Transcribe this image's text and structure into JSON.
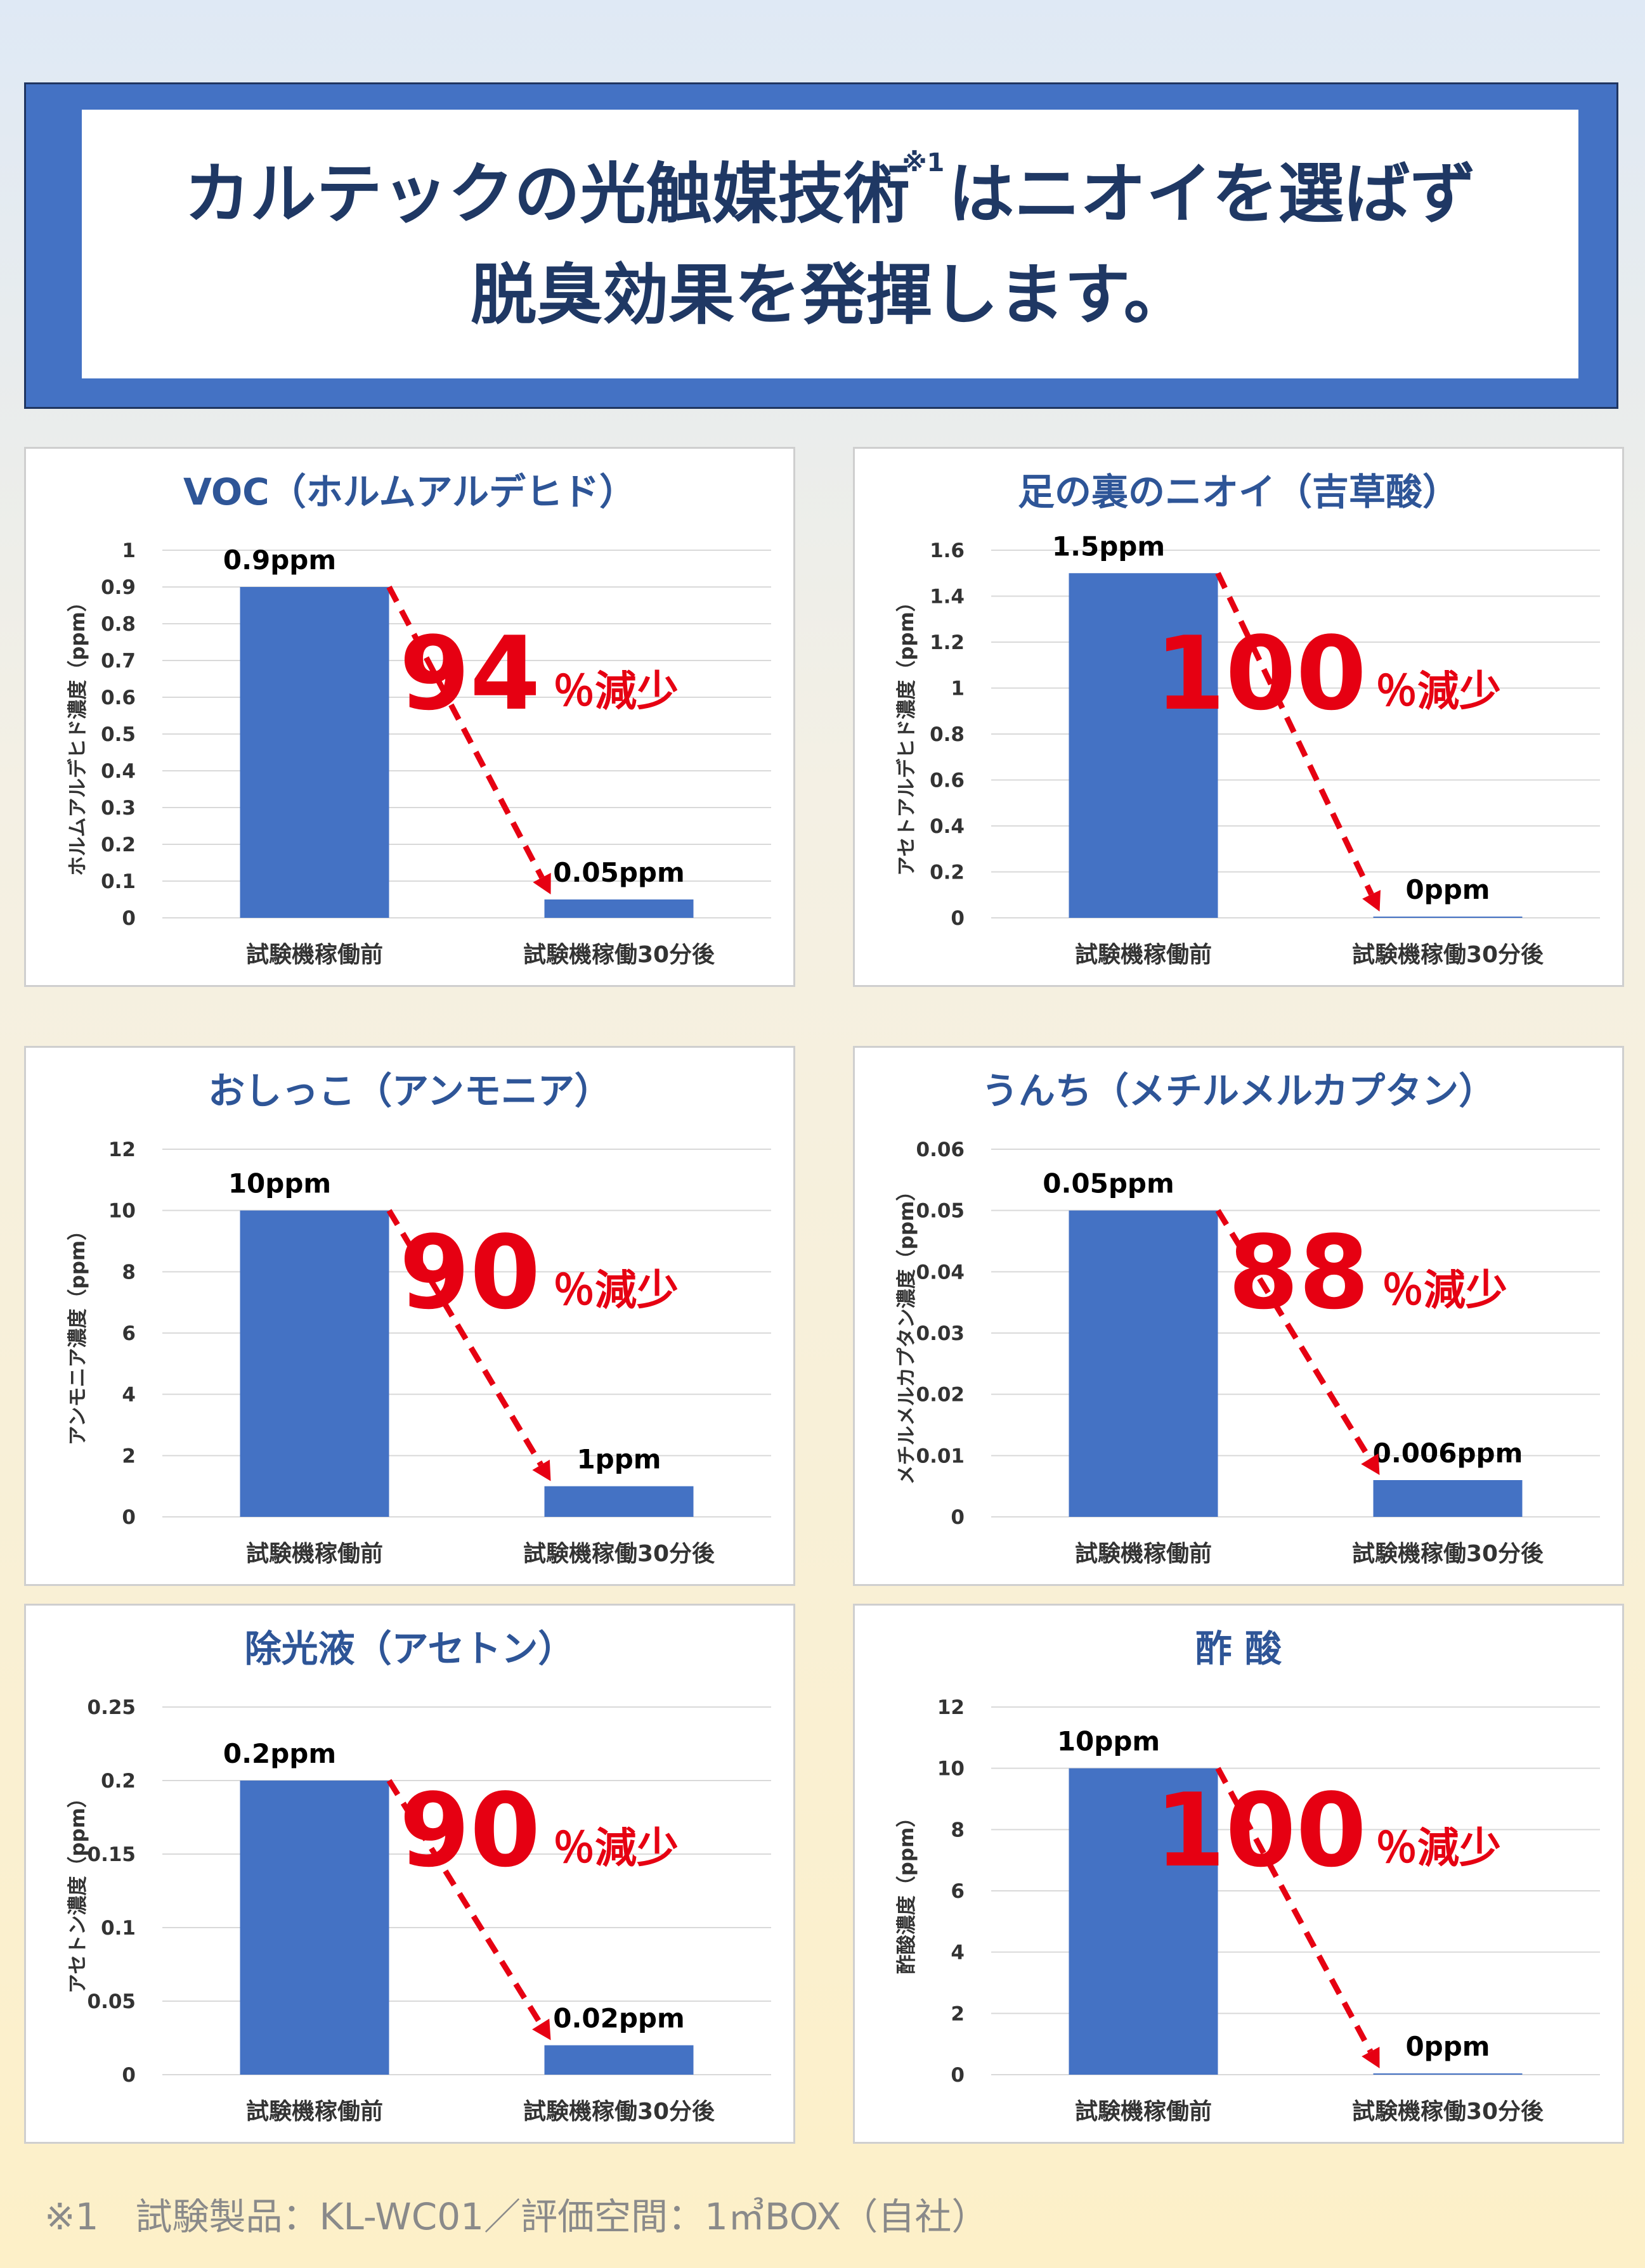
{
  "header": {
    "line1_a": "カルテックの光触媒技術",
    "note_mark": "※1",
    "line1_b": "はニオイを選ばず",
    "line2": "脱臭効果を発揮します。"
  },
  "colors": {
    "bar": "#4472c4",
    "arrow": "#e60012",
    "title": "#2e5597",
    "axis_text": "#333333"
  },
  "chart_data": [
    {
      "type": "bar",
      "title": "VOC（ホルムアルデヒド）",
      "ylabel": "ホルムアルデヒド濃度（ppm）",
      "categories": [
        "試験機稼働前",
        "試験機稼働30分後"
      ],
      "values": [
        0.9,
        0.05
      ],
      "data_labels": [
        "0.9ppm",
        "0.05ppm"
      ],
      "ylim": [
        0,
        1
      ],
      "yticks": [
        0,
        0.1,
        0.2,
        0.3,
        0.4,
        0.5,
        0.6,
        0.7,
        0.8,
        0.9,
        1
      ],
      "ytick_labels": [
        "0",
        "0.1",
        "0.2",
        "0.3",
        "0.4",
        "0.5",
        "0.6",
        "0.7",
        "0.8",
        "0.9",
        "1"
      ],
      "reduction": "94",
      "reduction_unit": "％減少",
      "grid": true
    },
    {
      "type": "bar",
      "title": "足の裏のニオイ（吉草酸）",
      "ylabel": "アセトアルデヒド濃度（ppm）",
      "categories": [
        "試験機稼働前",
        "試験機稼働30分後"
      ],
      "values": [
        1.5,
        0
      ],
      "data_labels": [
        "1.5ppm",
        "0ppm"
      ],
      "ylim": [
        0,
        1.6
      ],
      "yticks": [
        0,
        0.2,
        0.4,
        0.6,
        0.8,
        1,
        1.2,
        1.4,
        1.6
      ],
      "ytick_labels": [
        "0",
        "0.2",
        "0.4",
        "0.6",
        "0.8",
        "1",
        "1.2",
        "1.4",
        "1.6"
      ],
      "reduction": "100",
      "reduction_unit": "％減少",
      "grid": true
    },
    {
      "type": "bar",
      "title": "おしっこ（アンモニア）",
      "ylabel": "アンモニア濃度（ppm）",
      "categories": [
        "試験機稼働前",
        "試験機稼働30分後"
      ],
      "values": [
        10,
        1
      ],
      "data_labels": [
        "10ppm",
        "1ppm"
      ],
      "ylim": [
        0,
        12
      ],
      "yticks": [
        0,
        2,
        4,
        6,
        8,
        10,
        12
      ],
      "ytick_labels": [
        "0",
        "2",
        "4",
        "6",
        "8",
        "10",
        "12"
      ],
      "reduction": "90",
      "reduction_unit": "％減少",
      "grid": true
    },
    {
      "type": "bar",
      "title": "うんち（メチルメルカプタン）",
      "ylabel": "メチルメルカプタン濃度（ppm）",
      "categories": [
        "試験機稼働前",
        "試験機稼働30分後"
      ],
      "values": [
        0.05,
        0.006
      ],
      "data_labels": [
        "0.05ppm",
        "0.006ppm"
      ],
      "ylim": [
        0,
        0.06
      ],
      "yticks": [
        0,
        0.01,
        0.02,
        0.03,
        0.04,
        0.05,
        0.06
      ],
      "ytick_labels": [
        "0",
        "0.01",
        "0.02",
        "0.03",
        "0.04",
        "0.05",
        "0.06"
      ],
      "reduction": "88",
      "reduction_unit": "％減少",
      "grid": true
    },
    {
      "type": "bar",
      "title": "除光液（アセトン）",
      "ylabel": "アセトン濃度（ppm）",
      "categories": [
        "試験機稼働前",
        "試験機稼働30分後"
      ],
      "values": [
        0.2,
        0.02
      ],
      "data_labels": [
        "0.2ppm",
        "0.02ppm"
      ],
      "ylim": [
        0,
        0.25
      ],
      "yticks": [
        0,
        0.05,
        0.1,
        0.15,
        0.2,
        0.25
      ],
      "ytick_labels": [
        "0",
        "0.05",
        "0.1",
        "0.15",
        "0.2",
        "0.25"
      ],
      "reduction": "90",
      "reduction_unit": "％減少",
      "grid": true
    },
    {
      "type": "bar",
      "title": "酢 酸",
      "ylabel": "酢酸濃度（ppm）",
      "categories": [
        "試験機稼働前",
        "試験機稼働30分後"
      ],
      "values": [
        10,
        0
      ],
      "data_labels": [
        "10ppm",
        "0ppm"
      ],
      "ylim": [
        0,
        12
      ],
      "yticks": [
        0,
        2,
        4,
        6,
        8,
        10,
        12
      ],
      "ytick_labels": [
        "0",
        "2",
        "4",
        "6",
        "8",
        "10",
        "12"
      ],
      "reduction": "100",
      "reduction_unit": "％減少",
      "grid": true
    }
  ],
  "footnote": "※1　試験製品：KL-WC01／評価空間：1㎥BOX（自社）"
}
